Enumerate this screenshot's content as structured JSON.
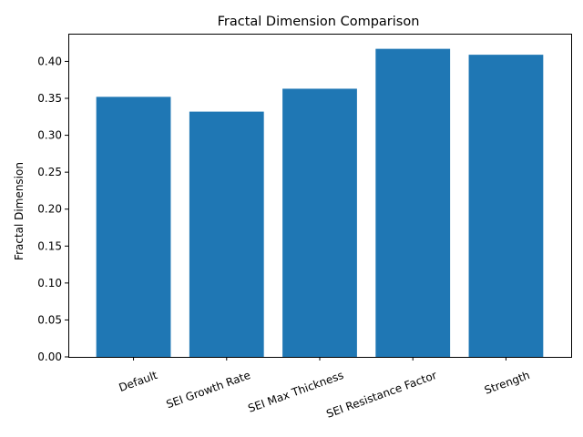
{
  "chart_data": {
    "type": "bar",
    "title": "Fractal Dimension Comparison",
    "xlabel": "",
    "ylabel": "Fractal Dimension",
    "categories": [
      "Default",
      "SEI Growth Rate",
      "SEI Max Thickness",
      "SEI Resistance Factor",
      "Strength"
    ],
    "values": [
      0.352,
      0.332,
      0.363,
      0.417,
      0.409
    ],
    "ylim": [
      0,
      0.4375
    ],
    "yticks": [
      "0.00",
      "0.05",
      "0.10",
      "0.15",
      "0.20",
      "0.25",
      "0.30",
      "0.35",
      "0.40"
    ],
    "bar_color": "#1f77b4",
    "grid": false,
    "legend": "none"
  }
}
